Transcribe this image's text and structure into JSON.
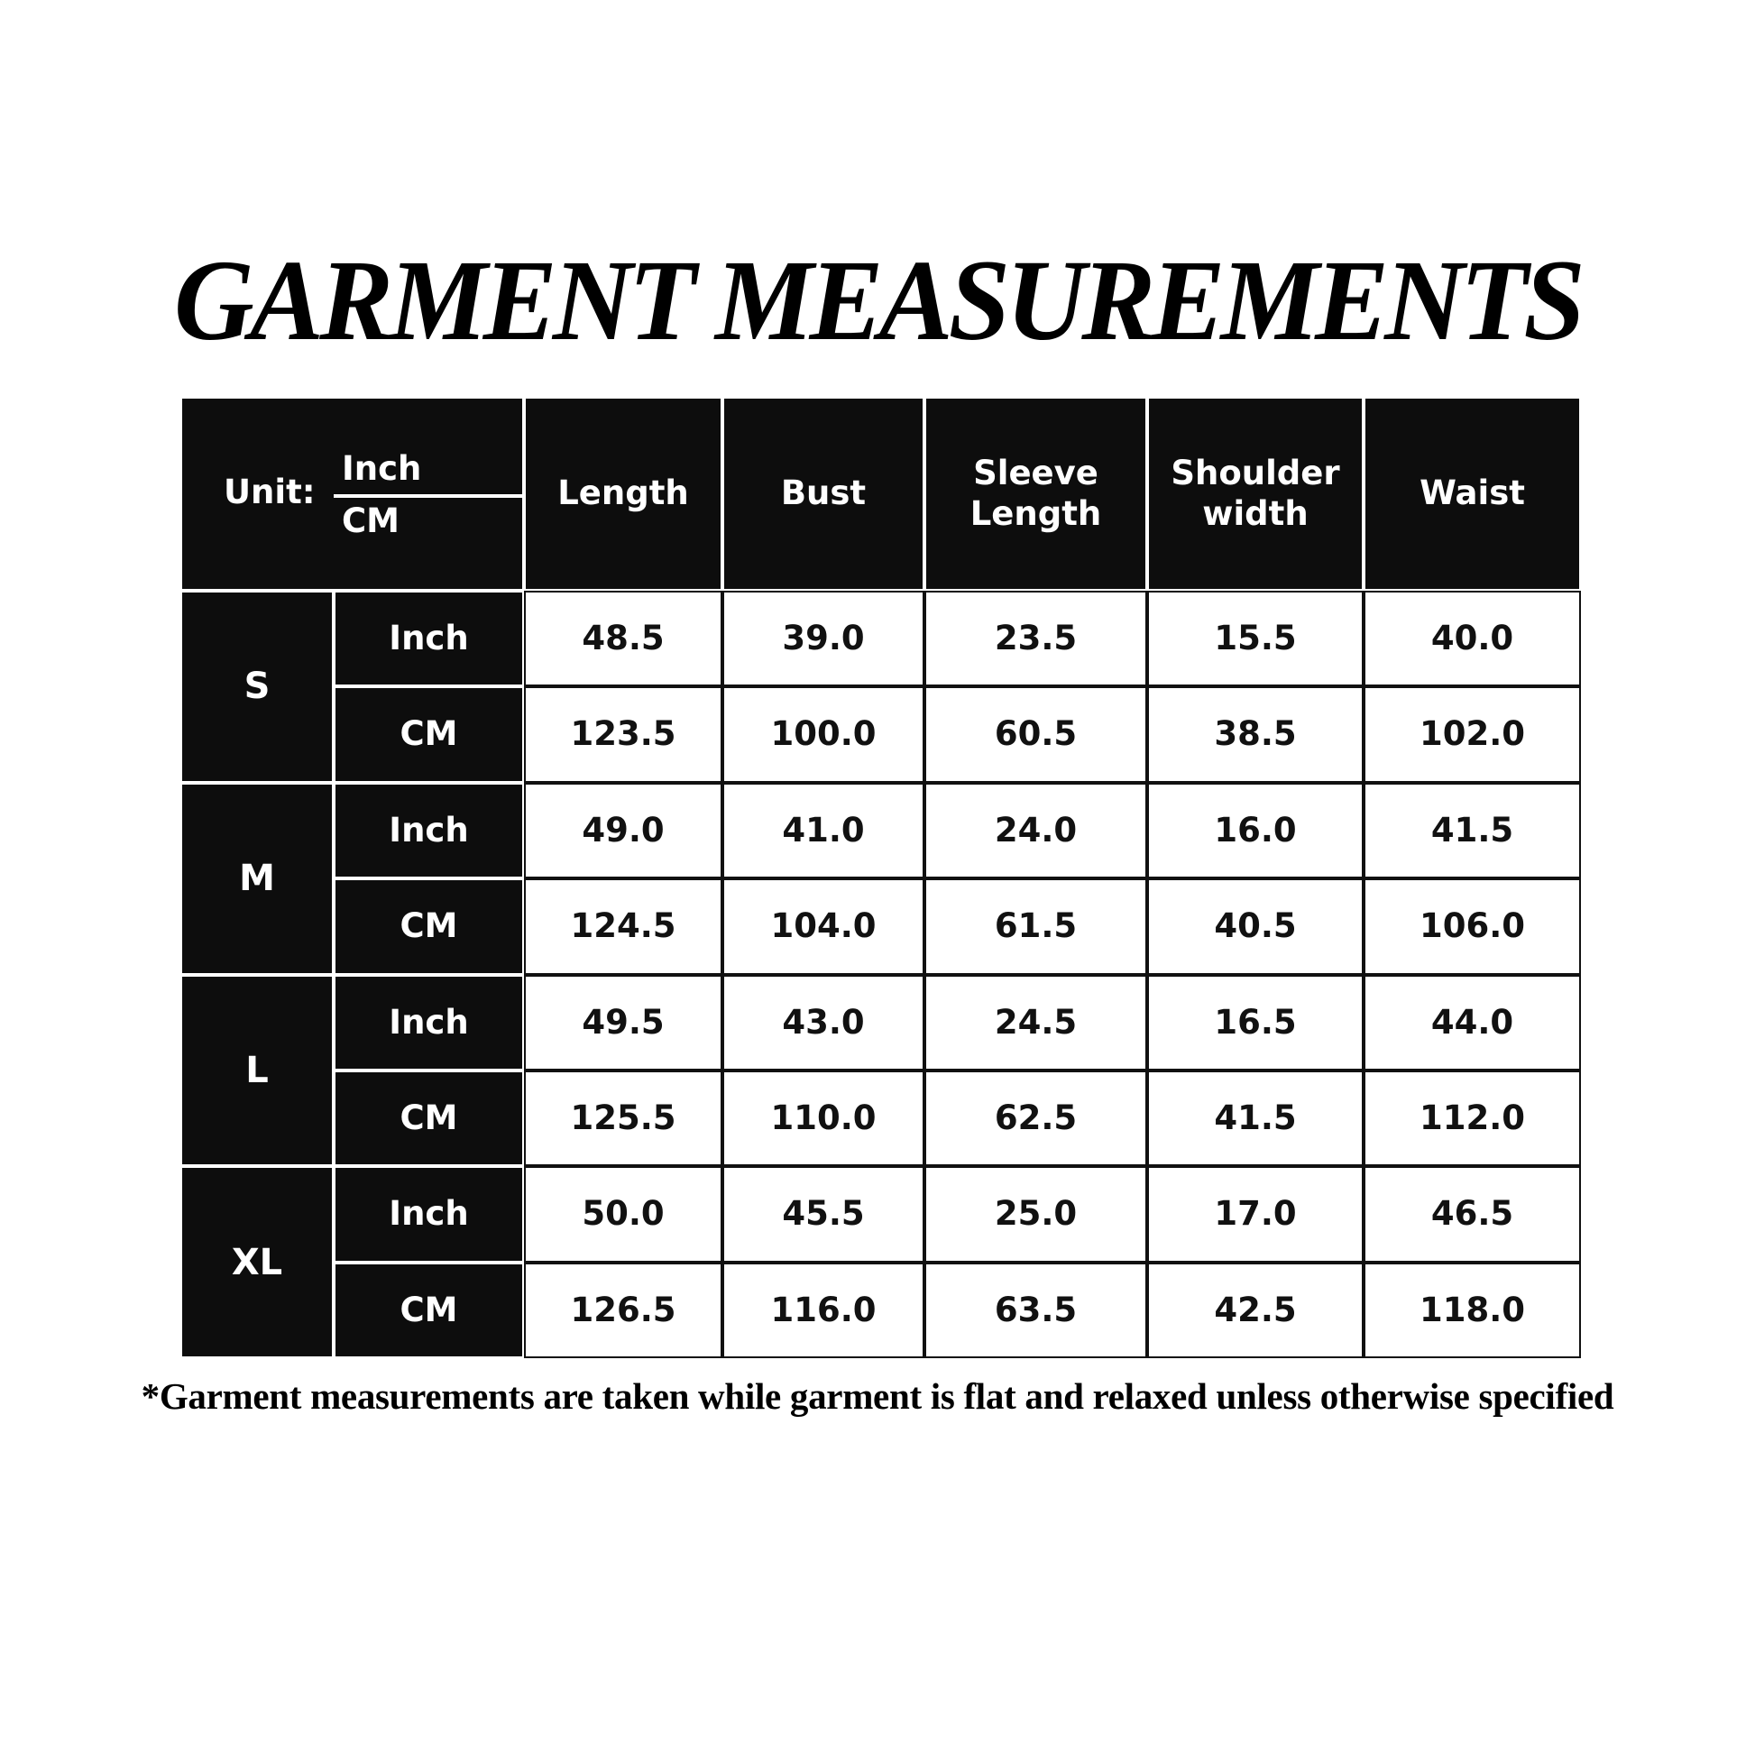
{
  "title": "GARMENT MEASUREMENTS",
  "table": {
    "unit_label": "Unit:",
    "unit_top": "Inch",
    "unit_bottom": "CM",
    "columns": [
      "Length",
      "Bust",
      "Sleeve\nLength",
      "Shoulder\nwidth",
      "Waist"
    ],
    "sizes": [
      {
        "size": "S",
        "rows": [
          {
            "unit": "Inch",
            "values": [
              "48.5",
              "39.0",
              "23.5",
              "15.5",
              "40.0"
            ]
          },
          {
            "unit": "CM",
            "values": [
              "123.5",
              "100.0",
              "60.5",
              "38.5",
              "102.0"
            ]
          }
        ]
      },
      {
        "size": "M",
        "rows": [
          {
            "unit": "Inch",
            "values": [
              "49.0",
              "41.0",
              "24.0",
              "16.0",
              "41.5"
            ]
          },
          {
            "unit": "CM",
            "values": [
              "124.5",
              "104.0",
              "61.5",
              "40.5",
              "106.0"
            ]
          }
        ]
      },
      {
        "size": "L",
        "rows": [
          {
            "unit": "Inch",
            "values": [
              "49.5",
              "43.0",
              "24.5",
              "16.5",
              "44.0"
            ]
          },
          {
            "unit": "CM",
            "values": [
              "125.5",
              "110.0",
              "62.5",
              "41.5",
              "112.0"
            ]
          }
        ]
      },
      {
        "size": "XL",
        "rows": [
          {
            "unit": "Inch",
            "values": [
              "50.0",
              "45.5",
              "25.0",
              "17.0",
              "46.5"
            ]
          },
          {
            "unit": "CM",
            "values": [
              "126.5",
              "116.0",
              "63.5",
              "42.5",
              "118.0"
            ]
          }
        ]
      }
    ]
  },
  "footnote": "*Garment measurements are taken while garment is flat and relaxed unless otherwise specified",
  "colors": {
    "header_bg": "#0d0d0d",
    "header_text": "#ffffff",
    "cell_bg": "#ffffff",
    "cell_text": "#111111"
  }
}
